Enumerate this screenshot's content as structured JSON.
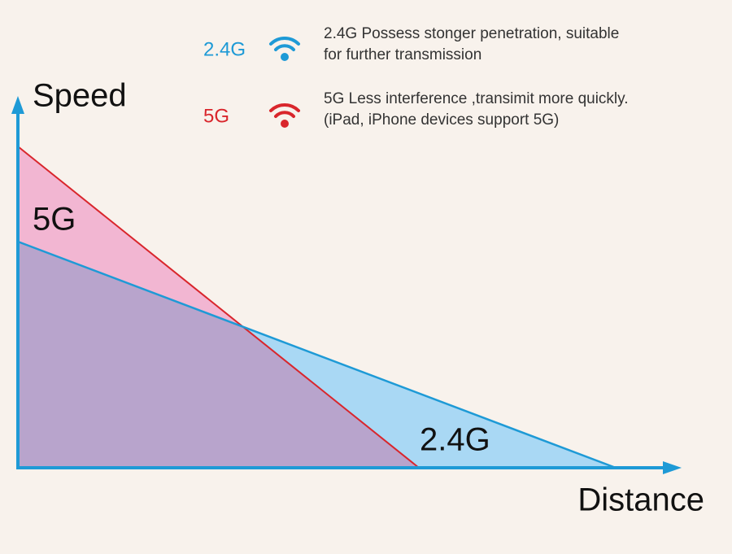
{
  "axes": {
    "y_label": "Speed",
    "x_label": "Distance"
  },
  "regions": {
    "high_band": "5G",
    "low_band": "2.4G"
  },
  "legend": [
    {
      "label": "2.4G",
      "lines": [
        "2.4G Possess stonger penetration, suitable",
        "for further transmission"
      ]
    },
    {
      "label": "5G",
      "lines": [
        "5G Less interference ,transimit more quickly.",
        "(iPad, iPhone devices support 5G)"
      ]
    }
  ]
}
